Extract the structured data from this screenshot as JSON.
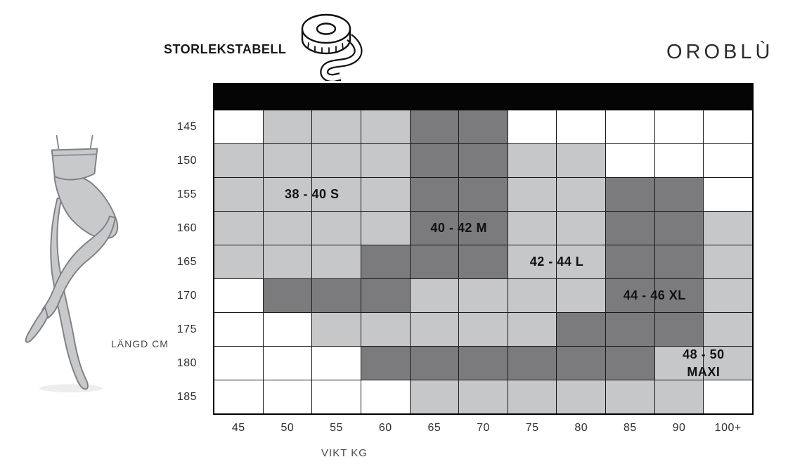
{
  "header": {
    "title": "STORLEKSTABELL",
    "brand": "OROBLÙ",
    "tape_icon": "tape-measure-icon"
  },
  "chart_data": {
    "type": "heatmap",
    "title": "STORLEKSTABELL",
    "xlabel": "VIKT KG",
    "ylabel": "LÄNGD CM",
    "x_categories": [
      "45",
      "50",
      "55",
      "60",
      "65",
      "70",
      "75",
      "80",
      "85",
      "90",
      "100+"
    ],
    "y_categories": [
      "145",
      "150",
      "155",
      "160",
      "165",
      "170",
      "175",
      "180",
      "185"
    ],
    "cell_state_colors": {
      "w": "#ffffff",
      "l": "#c6c7c8",
      "d": "#7b7b7d"
    },
    "colors": {
      "header_bar": "#050505",
      "grid_line": "#1a1a1a",
      "blank_cell": "#ffffff",
      "light_cell": "#c6c7c8",
      "dark_cell": "#7b7b7d",
      "label_text": "#121212",
      "illustration_fill": "#c8c9cb",
      "illustration_outline": "#808185"
    },
    "grid": [
      [
        "w",
        "l",
        "l",
        "l",
        "d",
        "d",
        "w",
        "w",
        "w",
        "w",
        "w"
      ],
      [
        "l",
        "l",
        "l",
        "l",
        "d",
        "d",
        "l",
        "l",
        "w",
        "w",
        "w"
      ],
      [
        "l",
        "l",
        "l",
        "l",
        "d",
        "d",
        "l",
        "l",
        "d",
        "d",
        "w"
      ],
      [
        "l",
        "l",
        "l",
        "l",
        "d",
        "d",
        "l",
        "l",
        "d",
        "d",
        "l"
      ],
      [
        "l",
        "l",
        "l",
        "d",
        "d",
        "d",
        "l",
        "l",
        "d",
        "d",
        "l"
      ],
      [
        "w",
        "d",
        "d",
        "d",
        "l",
        "l",
        "l",
        "l",
        "d",
        "d",
        "l"
      ],
      [
        "w",
        "w",
        "l",
        "l",
        "l",
        "l",
        "l",
        "d",
        "d",
        "d",
        "l"
      ],
      [
        "w",
        "w",
        "w",
        "d",
        "d",
        "d",
        "d",
        "d",
        "d",
        "l",
        "l"
      ],
      [
        "w",
        "w",
        "w",
        "w",
        "l",
        "l",
        "l",
        "l",
        "l",
        "l",
        "w"
      ]
    ],
    "size_labels": [
      {
        "text": "38 - 40 S",
        "lines": [
          "38 - 40 S"
        ],
        "row_index": 2,
        "col_start": 1,
        "col_span": 2
      },
      {
        "text": "40 - 42 M",
        "lines": [
          "40 - 42 M"
        ],
        "row_index": 3,
        "col_start": 4,
        "col_span": 2
      },
      {
        "text": "42 - 44 L",
        "lines": [
          "42 - 44 L"
        ],
        "row_index": 4,
        "col_start": 6,
        "col_span": 2
      },
      {
        "text": "44 - 46 XL",
        "lines": [
          "44 - 46 XL"
        ],
        "row_index": 5,
        "col_start": 8,
        "col_span": 2
      },
      {
        "text": "48 - 50 MAXI",
        "lines": [
          "48 - 50",
          "MAXI"
        ],
        "row_index": 7,
        "col_start": 9,
        "col_span": 2
      }
    ]
  }
}
